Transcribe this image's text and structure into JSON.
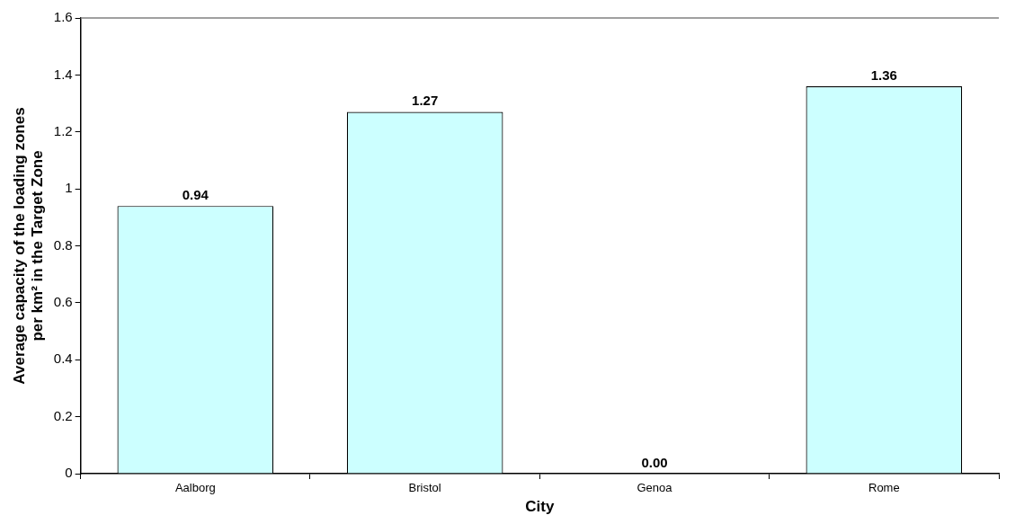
{
  "chart_data": {
    "type": "bar",
    "xlabel": "City",
    "ylabel": "Average capacity of the loading zones per km² in the Target Zone",
    "categories": [
      "Aalborg",
      "Bristol",
      "Genoa",
      "Rome"
    ],
    "values": [
      0.94,
      1.27,
      0,
      1.36
    ],
    "value_labels": [
      "0.94",
      "1.27",
      "0.00",
      "1.36"
    ],
    "color": "#ccffff",
    "ylim": [
      0,
      1.6
    ],
    "yticks": [
      0,
      0.2,
      0.4,
      0.6,
      0.8,
      1,
      1.2,
      1.4,
      1.6
    ],
    "grid": false,
    "legend": false
  }
}
